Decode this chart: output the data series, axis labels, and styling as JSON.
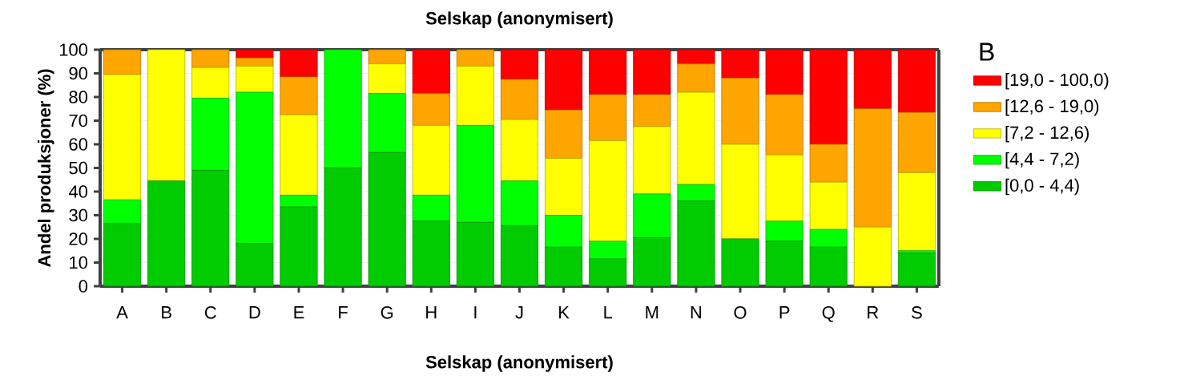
{
  "chart_data": {
    "type": "bar",
    "stacked": true,
    "title": "Selskap (anonymisert)",
    "xlabel": "Selskap (anonymisert)",
    "ylabel": "Andel produksjoner (%)",
    "legend_title": "B",
    "legend": "right",
    "categories": [
      "A",
      "B",
      "C",
      "D",
      "E",
      "F",
      "G",
      "H",
      "I",
      "J",
      "K",
      "L",
      "M",
      "N",
      "O",
      "P",
      "Q",
      "R",
      "S"
    ],
    "series": [
      {
        "name": "[0,0 - 4,4)",
        "color": "#00cc00",
        "values": [
          26.5,
          44.5,
          49,
          18,
          33.5,
          50,
          56.5,
          27.5,
          27,
          25.5,
          16.5,
          11.5,
          20.5,
          36,
          20,
          19,
          16.5,
          0,
          14
        ]
      },
      {
        "name": "[4,4  - 7,2)",
        "color": "#00ff00",
        "values": [
          10,
          0,
          30.5,
          64,
          5,
          50,
          25,
          11,
          41,
          19,
          13.5,
          7.5,
          18.5,
          7,
          0,
          8.5,
          7.5,
          0,
          1
        ]
      },
      {
        "name": "[7,2  - 12,6)",
        "color": "#ffff00",
        "values": [
          53,
          55.5,
          13,
          11,
          34,
          0,
          12.5,
          29.5,
          25,
          26,
          24,
          42.5,
          28.5,
          39,
          40,
          28,
          20,
          25,
          33
        ]
      },
      {
        "name": "[12,6  - 19,0)",
        "color": "#ffa500",
        "values": [
          10.5,
          0,
          7.5,
          3.5,
          16,
          0,
          6,
          13.5,
          7,
          17,
          20.5,
          19.5,
          13.5,
          12,
          28,
          25.5,
          16,
          50,
          25.5
        ]
      },
      {
        "name": "[19,0  - 100,0)",
        "color": "#ff0000",
        "values": [
          0,
          0,
          0,
          3.5,
          11.5,
          0,
          0,
          18.5,
          0,
          12.5,
          25.5,
          19,
          19,
          6,
          12,
          19,
          40,
          25,
          26.5
        ]
      }
    ],
    "ylim": [
      0,
      100
    ],
    "yticks": [
      0,
      10,
      20,
      30,
      40,
      50,
      60,
      70,
      80,
      90,
      100
    ],
    "grid": "y"
  }
}
